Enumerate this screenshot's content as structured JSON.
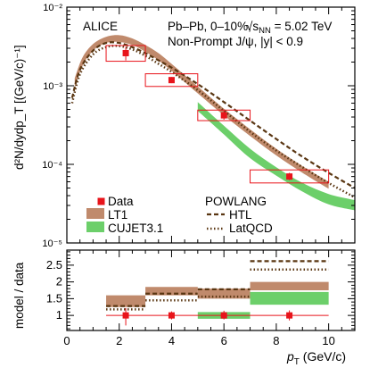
{
  "chart_data": [
    {
      "type": "line",
      "panel": "top",
      "ylabel": "d²N/dydp_T [(GeV/c)⁻¹]",
      "yscale": "log",
      "ylim": [
        1e-05,
        0.01
      ],
      "xlim": [
        0,
        11
      ],
      "y_ticks": [
        "10⁻⁵",
        "10⁻⁴",
        "10⁻³",
        "10⁻²"
      ],
      "annotations": {
        "experiment": "ALICE",
        "system": "Pb–Pb, 0–10%,",
        "energy_prefix": "√s",
        "energy_sub": "NN",
        "energy_value": " = 5.02 TeV",
        "selection": "Non-Prompt J/ψ, |y| < 0.9"
      },
      "legend": {
        "data": "Data",
        "lt1": "LT1",
        "cujet": "CUJET3.1",
        "powlang": "POWLANG",
        "htl": "HTL",
        "latqcd": "LatQCD"
      },
      "series": [
        {
          "name": "Data",
          "color": "#e8141b",
          "points": [
            {
              "x": 2.25,
              "xlo": 1.5,
              "xhi": 3.0,
              "y": 0.0026,
              "ylo": 0.0021,
              "yhi": 0.0031,
              "syslo": 0.00205,
              "syshi": 0.00325
            },
            {
              "x": 4.0,
              "xlo": 3.0,
              "xhi": 5.0,
              "y": 0.00118,
              "ylo": 0.00108,
              "yhi": 0.00129,
              "syslo": 0.00098,
              "syshi": 0.00142
            },
            {
              "x": 6.0,
              "xlo": 5.0,
              "xhi": 7.0,
              "y": 0.00042,
              "ylo": 0.00037,
              "yhi": 0.00048,
              "syslo": 0.00036,
              "syshi": 0.00049
            },
            {
              "x": 8.5,
              "xlo": 7.0,
              "xhi": 10.0,
              "y": 7e-05,
              "ylo": 6.3e-05,
              "yhi": 7.8e-05,
              "syslo": 5.8e-05,
              "syshi": 8.5e-05
            }
          ]
        },
        {
          "name": "LT1",
          "color": "#c08a6c",
          "x": [
            0.3,
            0.6,
            1.0,
            1.5,
            2.0,
            2.5,
            3.0,
            3.5,
            4.0,
            5.0,
            6.0,
            7.0,
            8.0,
            9.0,
            10.0
          ],
          "lo": [
            0.00095,
            0.0018,
            0.0028,
            0.0035,
            0.0036,
            0.0033,
            0.0027,
            0.0021,
            0.00155,
            0.0008,
            0.00042,
            0.00023,
            0.00013,
            7.8e-05,
            4.9e-05
          ],
          "hi": [
            0.00125,
            0.0023,
            0.0034,
            0.0042,
            0.0044,
            0.004,
            0.0033,
            0.0026,
            0.0019,
            0.00098,
            0.00051,
            0.00028,
            0.000158,
            9.5e-05,
            6e-05
          ]
        },
        {
          "name": "CUJET3.1",
          "color": "#6ccf6a",
          "x": [
            5.0,
            6.0,
            7.0,
            8.0,
            9.0,
            10.0,
            11.0
          ],
          "lo": [
            0.00048,
            0.00024,
            0.00012,
            7.2e-05,
            4.5e-05,
            3.1e-05,
            2.6e-05
          ],
          "hi": [
            0.00062,
            0.00031,
            0.000158,
            9.2e-05,
            5.8e-05,
            4.2e-05,
            3.5e-05
          ]
        },
        {
          "name": "HTL",
          "color": "#5a3612",
          "x": [
            0.2,
            0.5,
            1.0,
            1.5,
            2.0,
            2.5,
            3.0,
            3.5,
            4.0,
            5.0,
            6.0,
            7.0,
            8.0,
            9.0,
            10.0,
            11.0
          ],
          "y": [
            0.0007,
            0.0016,
            0.0028,
            0.0035,
            0.0035,
            0.0031,
            0.0026,
            0.0021,
            0.0017,
            0.00105,
            0.00062,
            0.00036,
            0.00021,
            0.000125,
            7.8e-05,
            5e-05
          ]
        },
        {
          "name": "LatQCD",
          "color": "#5a3612",
          "x": [
            0.2,
            0.5,
            1.0,
            1.5,
            2.0,
            2.5,
            3.0,
            3.5,
            4.0,
            5.0,
            6.0,
            7.0,
            8.0,
            9.0,
            10.0,
            11.0
          ],
          "y": [
            0.0006,
            0.0014,
            0.0025,
            0.0031,
            0.0032,
            0.0029,
            0.0024,
            0.0019,
            0.0015,
            0.00088,
            0.00048,
            0.00026,
            0.00015,
            9.2e-05,
            5.8e-05,
            3.8e-05
          ]
        }
      ]
    },
    {
      "type": "bar",
      "panel": "bottom",
      "ylabel": "model / data",
      "xlabel_main": "p",
      "xlabel_sub": "T",
      "xlabel_unit": " (GeV/c)",
      "xlim": [
        0,
        11
      ],
      "ylim": [
        0.55,
        2.95
      ],
      "x_ticks": [
        "0",
        "2",
        "4",
        "6",
        "8",
        "10"
      ],
      "y_ticks": [
        "1",
        "1.5",
        "2",
        "2.5"
      ],
      "bins": [
        [
          1.5,
          3.0
        ],
        [
          3.0,
          5.0
        ],
        [
          5.0,
          7.0
        ],
        [
          7.0,
          10.0
        ]
      ],
      "data_points": [
        {
          "x": 2.25,
          "y": 1.0,
          "ylo": 0.7,
          "yhi": 1.22
        },
        {
          "x": 4.0,
          "y": 1.0,
          "ylo": 0.88,
          "yhi": 1.12
        },
        {
          "x": 6.0,
          "y": 1.0,
          "ylo": 0.88,
          "yhi": 1.14
        },
        {
          "x": 8.5,
          "y": 1.0,
          "ylo": 0.85,
          "yhi": 1.15
        }
      ],
      "lt1_band": [
        [
          1.25,
          1.6
        ],
        [
          1.6,
          1.85
        ],
        [
          1.5,
          1.8
        ],
        [
          1.75,
          2.0
        ]
      ],
      "cujet_band": [
        null,
        null,
        [
          0.9,
          1.1
        ],
        [
          1.32,
          1.7
        ]
      ],
      "htl": [
        1.28,
        1.65,
        1.78,
        2.62
      ],
      "latqcd": [
        1.18,
        1.45,
        1.56,
        2.37
      ]
    }
  ]
}
